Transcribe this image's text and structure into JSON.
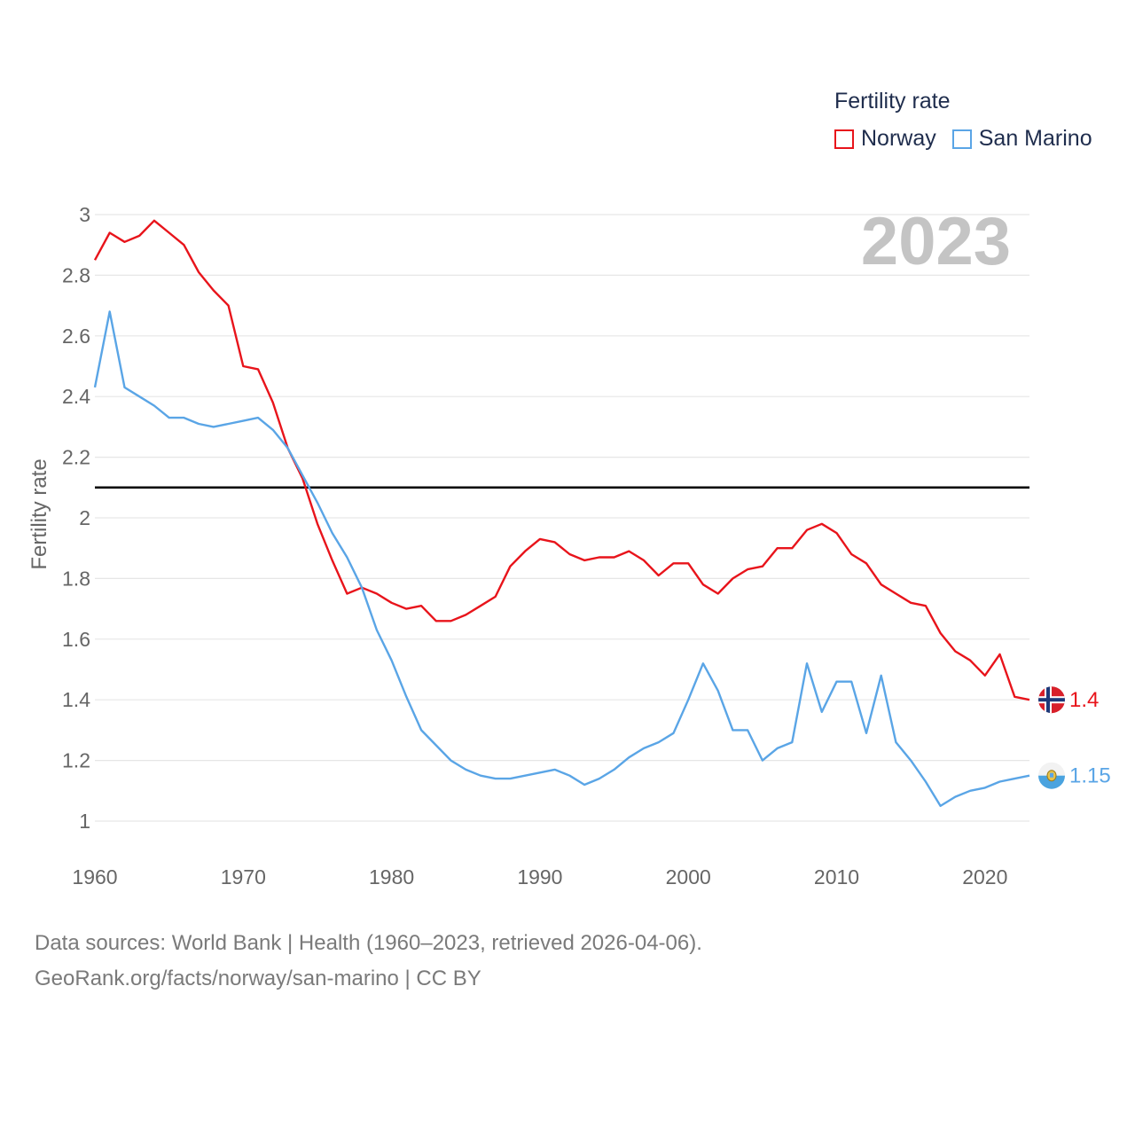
{
  "legend": {
    "title": "Fertility rate",
    "items": [
      {
        "label": "Norway",
        "color": "#e8141b"
      },
      {
        "label": "San Marino",
        "color": "#5aa5e6"
      }
    ]
  },
  "year_label": "2023",
  "footer": {
    "line1": "Data sources: World Bank | Health (1960–2023, retrieved 2026-04-06).",
    "line2": "GeoRank.org/facts/norway/san-marino | CC BY"
  },
  "chart_data": {
    "type": "line",
    "title": "Fertility rate",
    "xlabel": "",
    "ylabel": "Fertility rate",
    "xlim": [
      1960,
      2023
    ],
    "ylim": [
      0.9,
      3.05
    ],
    "x_ticks": [
      1960,
      1970,
      1980,
      1990,
      2000,
      2010,
      2020
    ],
    "y_ticks": [
      1,
      1.2,
      1.4,
      1.6,
      1.8,
      2,
      2.2,
      2.4,
      2.6,
      2.8,
      3
    ],
    "y_tick_labels": [
      "1",
      "1.2",
      "1.4",
      "1.6",
      "1.8",
      "2",
      "2.2",
      "2.4",
      "2.6",
      "2.8",
      "3"
    ],
    "reference_line": 2.1,
    "grid": true,
    "x": [
      1960,
      1961,
      1962,
      1963,
      1964,
      1965,
      1966,
      1967,
      1968,
      1969,
      1970,
      1971,
      1972,
      1973,
      1974,
      1975,
      1976,
      1977,
      1978,
      1979,
      1980,
      1981,
      1982,
      1983,
      1984,
      1985,
      1986,
      1987,
      1988,
      1989,
      1990,
      1991,
      1992,
      1993,
      1994,
      1995,
      1996,
      1997,
      1998,
      1999,
      2000,
      2001,
      2002,
      2003,
      2004,
      2005,
      2006,
      2007,
      2008,
      2009,
      2010,
      2011,
      2012,
      2013,
      2014,
      2015,
      2016,
      2017,
      2018,
      2019,
      2020,
      2021,
      2022,
      2023
    ],
    "series": [
      {
        "name": "Norway",
        "color": "#e8141b",
        "end_label": "1.4",
        "values": [
          2.85,
          2.94,
          2.91,
          2.93,
          2.98,
          2.94,
          2.9,
          2.81,
          2.75,
          2.7,
          2.5,
          2.49,
          2.38,
          2.23,
          2.13,
          1.98,
          1.86,
          1.75,
          1.77,
          1.75,
          1.72,
          1.7,
          1.71,
          1.66,
          1.66,
          1.68,
          1.71,
          1.74,
          1.84,
          1.89,
          1.93,
          1.92,
          1.88,
          1.86,
          1.87,
          1.87,
          1.89,
          1.86,
          1.81,
          1.85,
          1.85,
          1.78,
          1.75,
          1.8,
          1.83,
          1.84,
          1.9,
          1.9,
          1.96,
          1.98,
          1.95,
          1.88,
          1.85,
          1.78,
          1.75,
          1.72,
          1.71,
          1.62,
          1.56,
          1.53,
          1.48,
          1.55,
          1.41,
          1.4
        ]
      },
      {
        "name": "San Marino",
        "color": "#5aa5e6",
        "end_label": "1.15",
        "values": [
          2.43,
          2.68,
          2.43,
          2.4,
          2.37,
          2.33,
          2.33,
          2.31,
          2.3,
          2.31,
          2.32,
          2.33,
          2.29,
          2.23,
          2.14,
          2.05,
          1.95,
          1.87,
          1.77,
          1.63,
          1.53,
          1.41,
          1.3,
          1.25,
          1.2,
          1.17,
          1.15,
          1.14,
          1.14,
          1.15,
          1.16,
          1.17,
          1.15,
          1.12,
          1.14,
          1.17,
          1.21,
          1.24,
          1.26,
          1.29,
          1.4,
          1.52,
          1.43,
          1.3,
          1.3,
          1.2,
          1.24,
          1.26,
          1.52,
          1.36,
          1.46,
          1.46,
          1.29,
          1.48,
          1.26,
          1.2,
          1.13,
          1.05,
          1.08,
          1.1,
          1.11,
          1.13,
          1.14,
          1.15
        ]
      }
    ]
  }
}
